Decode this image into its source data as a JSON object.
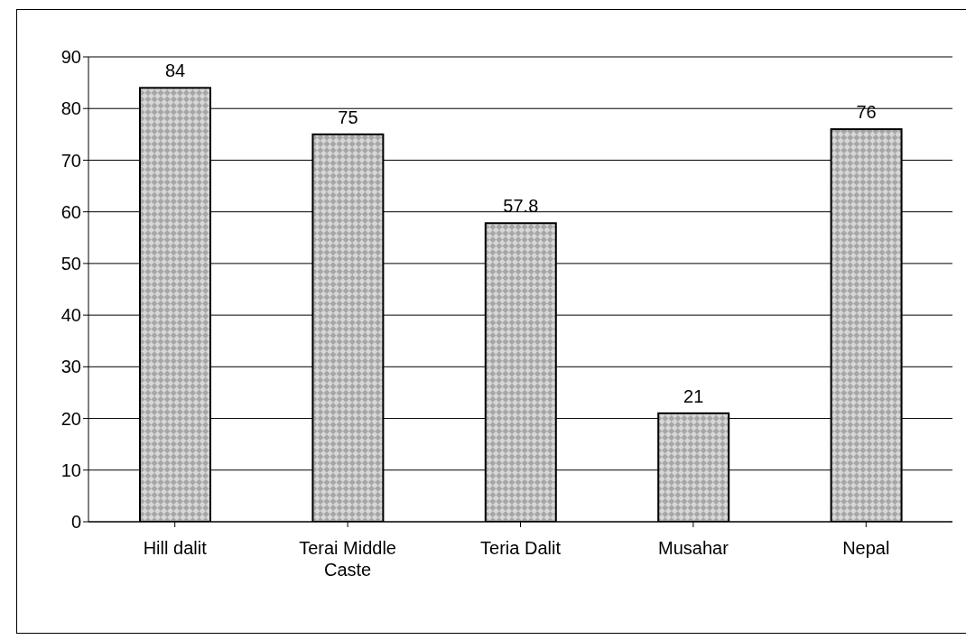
{
  "chart_data": {
    "type": "bar",
    "categories": [
      "Hill dalit",
      "Terai Middle Caste",
      "Teria Dalit",
      "Musahar",
      "Nepal"
    ],
    "values": [
      84,
      75,
      57.8,
      21,
      76
    ],
    "color": "#a6a6a6",
    "ylim": [
      0,
      90
    ],
    "yticks": [
      0,
      10,
      20,
      30,
      40,
      50,
      60,
      70,
      80,
      90
    ],
    "grid": "y",
    "data_labels": true
  }
}
